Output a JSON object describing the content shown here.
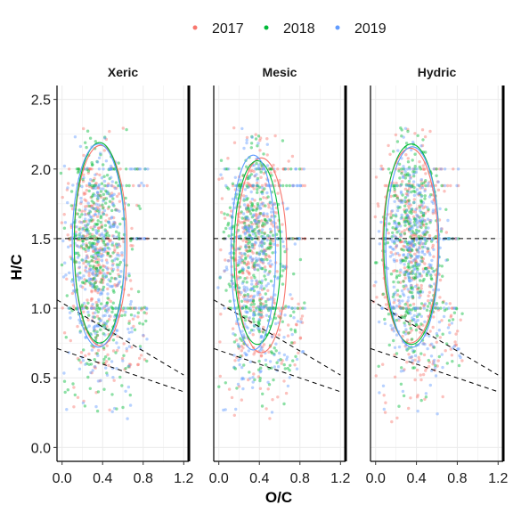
{
  "chart_data": {
    "type": "scatter",
    "xlabel": "O/C",
    "ylabel": "H/C",
    "xlim": [
      -0.05,
      1.25
    ],
    "ylim": [
      -0.1,
      2.6
    ],
    "x_ticks": [
      "0.0",
      "0.4",
      "0.8",
      "1.2"
    ],
    "x_tick_values": [
      0.0,
      0.4,
      0.8,
      1.2
    ],
    "y_ticks": [
      "0.0",
      "0.5",
      "1.0",
      "1.5",
      "2.0",
      "2.5"
    ],
    "y_tick_values": [
      0.0,
      0.5,
      1.0,
      1.5,
      2.0,
      2.5
    ],
    "grid": true,
    "legend_position": "top",
    "series": [
      {
        "name": "2017",
        "color": "#F8766D"
      },
      {
        "name": "2018",
        "color": "#00BA38"
      },
      {
        "name": "2019",
        "color": "#619CFF"
      }
    ],
    "panels": [
      {
        "title": "Xeric"
      },
      {
        "title": "Mesic"
      },
      {
        "title": "Hydric"
      }
    ],
    "reference_lines": [
      {
        "x1": -0.05,
        "y1": 1.5,
        "x2": 1.2,
        "y2": 1.5,
        "style": "dashed"
      },
      {
        "x1": -0.05,
        "y1": 1.06,
        "x2": 1.2,
        "y2": 0.52,
        "style": "dashed"
      },
      {
        "x1": -0.05,
        "y1": 0.71,
        "x2": 1.2,
        "y2": 0.4,
        "style": "dashed"
      }
    ],
    "ellipses": {
      "Xeric": [
        {
          "series": "2017",
          "cx": 0.38,
          "cy": 1.45,
          "rx": 0.26,
          "ry": 0.72
        },
        {
          "series": "2018",
          "cx": 0.37,
          "cy": 1.47,
          "rx": 0.25,
          "ry": 0.72
        },
        {
          "series": "2019",
          "cx": 0.36,
          "cy": 1.45,
          "rx": 0.26,
          "ry": 0.73
        }
      ],
      "Mesic": [
        {
          "series": "2017",
          "cx": 0.42,
          "cy": 1.38,
          "rx": 0.25,
          "ry": 0.7
        },
        {
          "series": "2018",
          "cx": 0.38,
          "cy": 1.4,
          "rx": 0.23,
          "ry": 0.66
        },
        {
          "series": "2019",
          "cx": 0.34,
          "cy": 1.4,
          "rx": 0.22,
          "ry": 0.7
        }
      ],
      "Hydric": [
        {
          "series": "2017",
          "cx": 0.34,
          "cy": 1.45,
          "rx": 0.27,
          "ry": 0.7
        },
        {
          "series": "2018",
          "cx": 0.35,
          "cy": 1.46,
          "rx": 0.27,
          "ry": 0.72
        },
        {
          "series": "2019",
          "cx": 0.36,
          "cy": 1.44,
          "rx": 0.26,
          "ry": 0.72
        }
      ]
    },
    "point_cloud": {
      "description_free_params": true,
      "center_x": 0.35,
      "spread_x": 0.14,
      "center_y": 1.45,
      "spread_y": 0.36,
      "horizontal_bands_y": [
        2.0,
        1.88,
        1.5,
        1.0
      ],
      "points_per_series_per_panel": 380
    }
  }
}
